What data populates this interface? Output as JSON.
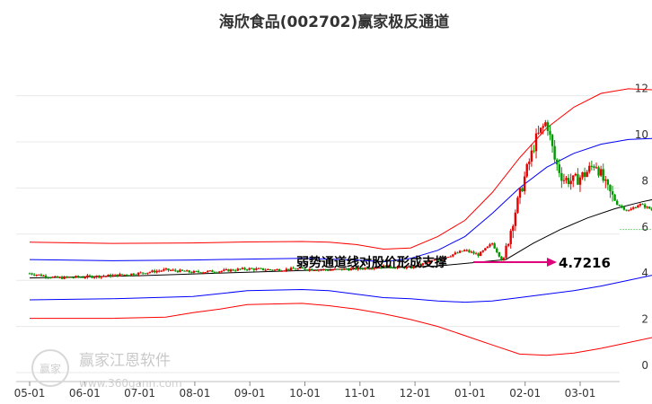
{
  "chart_data": {
    "type": "candlestick",
    "title": "海欣食品(002702)赢家极反通道",
    "x_tick_labels": [
      "05-01",
      "06-01",
      "07-01",
      "08-01",
      "09-01",
      "10-01",
      "11-01",
      "12-01",
      "01-01",
      "02-01",
      "03-01"
    ],
    "y_tick_labels": [
      "0",
      "2",
      "4",
      "6",
      "8",
      "10",
      "12"
    ],
    "ylim": [
      0,
      12.8
    ],
    "grid": "horizontal",
    "annotation": {
      "text": "弱势通道线对股价形成支撑",
      "value": "4.7216",
      "arrow_color": "#e0007a"
    },
    "watermark": {
      "logo": "赢家",
      "text": "赢家江恩软件",
      "url": "www.360gann.com"
    },
    "colors": {
      "up": "#e60000",
      "down": "#009900",
      "upper_band": "#ff0000",
      "mid_band": "#0000ff",
      "trend": "#000000",
      "dotted": "#00aa00"
    },
    "last_price": 6.2,
    "upper_outer": [
      [
        0,
        5.65
      ],
      [
        3,
        5.6
      ],
      [
        6,
        5.62
      ],
      [
        8,
        5.66
      ],
      [
        10,
        5.68
      ],
      [
        11,
        5.65
      ],
      [
        12,
        5.55
      ],
      [
        13,
        5.35
      ],
      [
        14,
        5.4
      ],
      [
        15,
        5.9
      ],
      [
        16,
        6.6
      ],
      [
        17,
        7.8
      ],
      [
        18,
        9.3
      ],
      [
        19,
        10.6
      ],
      [
        20,
        11.5
      ],
      [
        21,
        12.1
      ],
      [
        22,
        12.3
      ],
      [
        23,
        12.25
      ],
      [
        24,
        12.2
      ],
      [
        24.4,
        12.4
      ],
      [
        24.8,
        12.3
      ],
      [
        25.2,
        12.0
      ]
    ],
    "upper_inner": [
      [
        0,
        4.9
      ],
      [
        3,
        4.85
      ],
      [
        6,
        4.88
      ],
      [
        8,
        4.92
      ],
      [
        10,
        4.95
      ],
      [
        11,
        4.92
      ],
      [
        12,
        4.88
      ],
      [
        13,
        4.8
      ],
      [
        14,
        4.95
      ],
      [
        15,
        5.3
      ],
      [
        16,
        5.9
      ],
      [
        17,
        6.9
      ],
      [
        18,
        8.0
      ],
      [
        19,
        8.9
      ],
      [
        20,
        9.5
      ],
      [
        21,
        9.9
      ],
      [
        22,
        10.1
      ],
      [
        23,
        10.15
      ],
      [
        24,
        10.2
      ],
      [
        24.4,
        10.25
      ],
      [
        24.8,
        10.15
      ],
      [
        25.2,
        10.0
      ]
    ],
    "trend_line": [
      [
        0,
        4.1
      ],
      [
        4,
        4.2
      ],
      [
        8,
        4.35
      ],
      [
        12,
        4.5
      ],
      [
        15,
        4.62
      ],
      [
        17.5,
        4.9
      ],
      [
        18.5,
        5.6
      ],
      [
        19.5,
        6.2
      ],
      [
        20.5,
        6.7
      ],
      [
        21.5,
        7.1
      ],
      [
        22.5,
        7.4
      ],
      [
        23.5,
        7.65
      ],
      [
        24.5,
        7.75
      ],
      [
        25.2,
        7.6
      ]
    ],
    "lower_inner": [
      [
        0,
        3.15
      ],
      [
        3,
        3.2
      ],
      [
        6,
        3.3
      ],
      [
        8,
        3.55
      ],
      [
        10,
        3.6
      ],
      [
        11,
        3.55
      ],
      [
        12,
        3.4
      ],
      [
        13,
        3.25
      ],
      [
        14,
        3.2
      ],
      [
        15,
        3.1
      ],
      [
        16,
        3.05
      ],
      [
        17,
        3.1
      ],
      [
        18,
        3.25
      ],
      [
        19,
        3.4
      ],
      [
        20,
        3.55
      ],
      [
        21,
        3.75
      ],
      [
        22,
        4.0
      ],
      [
        23,
        4.25
      ],
      [
        24,
        4.5
      ],
      [
        24.8,
        4.7
      ]
    ],
    "lower_outer": [
      [
        0,
        2.35
      ],
      [
        3,
        2.35
      ],
      [
        5,
        2.4
      ],
      [
        6,
        2.6
      ],
      [
        7,
        2.75
      ],
      [
        8,
        2.95
      ],
      [
        10,
        3.0
      ],
      [
        11,
        2.9
      ],
      [
        12,
        2.75
      ],
      [
        13,
        2.55
      ],
      [
        14,
        2.3
      ],
      [
        15,
        2.0
      ],
      [
        16,
        1.6
      ],
      [
        17,
        1.2
      ],
      [
        18,
        0.8
      ],
      [
        19,
        0.75
      ],
      [
        20,
        0.85
      ],
      [
        21,
        1.05
      ],
      [
        22,
        1.3
      ],
      [
        23,
        1.55
      ],
      [
        24,
        1.85
      ],
      [
        24.4,
        2.0
      ],
      [
        24.8,
        1.95
      ]
    ],
    "price_path": [
      [
        0,
        4.3
      ],
      [
        1,
        4.1
      ],
      [
        2,
        4.15
      ],
      [
        3,
        4.2
      ],
      [
        4,
        4.3
      ],
      [
        5,
        4.45
      ],
      [
        6,
        4.35
      ],
      [
        7,
        4.4
      ],
      [
        8,
        4.5
      ],
      [
        9,
        4.45
      ],
      [
        10,
        4.5
      ],
      [
        11,
        4.45
      ],
      [
        12,
        4.5
      ],
      [
        13,
        4.6
      ],
      [
        14,
        4.55
      ],
      [
        15,
        4.9
      ],
      [
        16,
        5.3
      ],
      [
        16.5,
        5.1
      ],
      [
        17,
        5.6
      ],
      [
        17.4,
        4.8
      ],
      [
        17.8,
        6.8
      ],
      [
        18.2,
        8.5
      ],
      [
        18.6,
        10.1
      ],
      [
        19,
        10.9
      ],
      [
        19.3,
        9.2
      ],
      [
        19.6,
        8.4
      ],
      [
        20,
        8.3
      ],
      [
        20.4,
        8.6
      ],
      [
        20.8,
        9.1
      ],
      [
        21.2,
        8.0
      ],
      [
        21.6,
        7.3
      ],
      [
        22,
        7.0
      ],
      [
        22.4,
        7.3
      ],
      [
        22.8,
        7.1
      ],
      [
        23.2,
        6.8
      ],
      [
        23.6,
        6.6
      ],
      [
        24,
        6.65
      ],
      [
        24.4,
        7.6
      ],
      [
        24.8,
        7.3
      ],
      [
        25.2,
        6.3
      ]
    ]
  }
}
